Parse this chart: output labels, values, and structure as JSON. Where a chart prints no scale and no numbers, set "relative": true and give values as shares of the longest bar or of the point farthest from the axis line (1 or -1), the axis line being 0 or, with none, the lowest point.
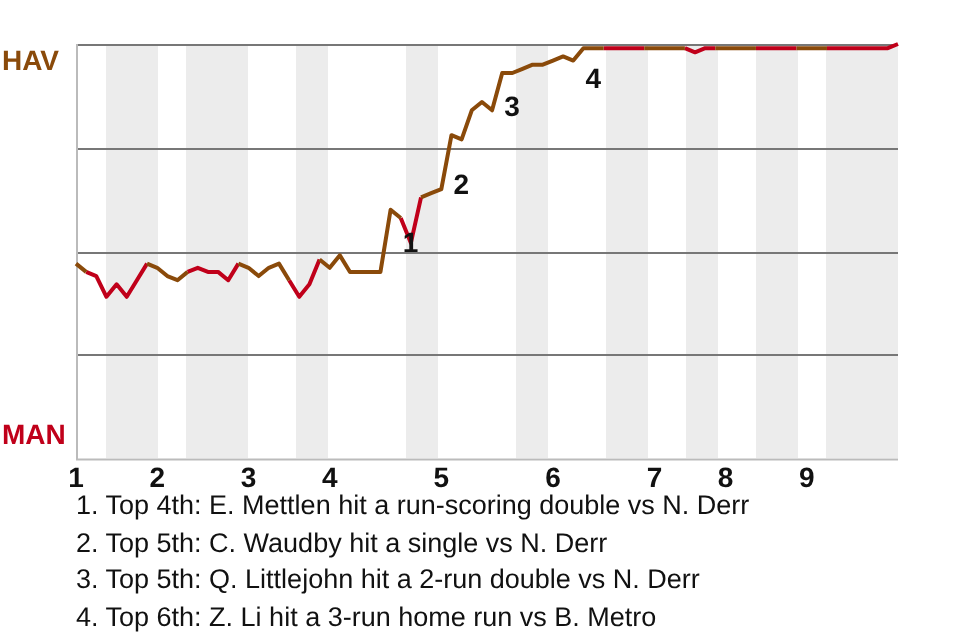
{
  "chart_data": {
    "type": "line",
    "relative": true,
    "categories": [
      "1",
      null,
      null,
      null,
      null,
      null,
      null,
      null,
      "2",
      null,
      null,
      null,
      null,
      null,
      null,
      null,
      null,
      "3",
      null,
      null,
      null,
      null,
      null,
      null,
      null,
      "4",
      null,
      null,
      null,
      null,
      null,
      null,
      null,
      null,
      null,
      null,
      "5",
      null,
      null,
      null,
      null,
      null,
      null,
      null,
      null,
      null,
      null,
      "6",
      null,
      null,
      null,
      null,
      null,
      null,
      null,
      null,
      null,
      "7",
      null,
      null,
      null,
      null,
      null,
      null,
      "8",
      null,
      null,
      null,
      null,
      null,
      null,
      null,
      "9",
      null,
      null,
      null,
      null,
      null,
      null,
      null,
      null,
      null
    ],
    "grid": "y",
    "marker": "none",
    "line_style": "solid",
    "series": [
      {
        "color": "#8a4a0a",
        "values": [
          0.47,
          0.45,
          null,
          null,
          null,
          null,
          null,
          0.47,
          0.46,
          0.44,
          0.43,
          0.45,
          null,
          null,
          null,
          null,
          0.47,
          0.46,
          0.44,
          0.46,
          0.47,
          0.43,
          null,
          null,
          0.48,
          0.46,
          0.49,
          0.45,
          0.45,
          0.45,
          0.45,
          0.6,
          0.58,
          null,
          0.63,
          0.64,
          0.65,
          0.78,
          0.77,
          0.84,
          0.86,
          0.84,
          0.93,
          0.93,
          0.94,
          0.95,
          0.95,
          0.96,
          0.97,
          0.96,
          0.99,
          0.99,
          0.99,
          null,
          null,
          null,
          0.99,
          0.99,
          0.99,
          0.99,
          0.99,
          null,
          null,
          0.99,
          0.99,
          0.99,
          0.99,
          0.99,
          null,
          null,
          null,
          0.99,
          0.99,
          0.99,
          0.99,
          null,
          null,
          null,
          null,
          null,
          null,
          null
        ]
      },
      {
        "color": "#c0001a",
        "values": [
          null,
          0.45,
          0.44,
          0.39,
          0.42,
          0.39,
          0.43,
          0.47,
          null,
          null,
          null,
          0.45,
          0.46,
          0.45,
          0.45,
          0.43,
          0.47,
          null,
          null,
          null,
          null,
          0.43,
          0.39,
          0.42,
          0.48,
          null,
          null,
          null,
          null,
          null,
          null,
          null,
          0.58,
          0.52,
          0.63,
          null,
          null,
          null,
          null,
          null,
          null,
          null,
          null,
          null,
          null,
          null,
          null,
          null,
          null,
          null,
          null,
          null,
          0.99,
          0.99,
          0.99,
          0.99,
          0.99,
          null,
          null,
          null,
          0.99,
          0.98,
          0.99,
          0.99,
          null,
          null,
          null,
          0.99,
          0.99,
          0.99,
          0.99,
          0.99,
          null,
          null,
          0.99,
          0.99,
          0.99,
          0.99,
          0.99,
          0.99,
          0.99,
          1
        ]
      }
    ],
    "annotations": [
      "HAV",
      "MAN",
      "1",
      "2",
      "3",
      "4",
      "1. Top 4th: E. Mettlen hit a run-scoring double vs N. Derr",
      "2. Top 5th: C. Waudby hit a single vs N. Derr",
      "3. Top 5th: Q. Littlejohn hit a 2-run double vs N. Derr",
      "4. Top 6th: Z. Li hit a 3-run home run vs B. Metro"
    ]
  }
}
